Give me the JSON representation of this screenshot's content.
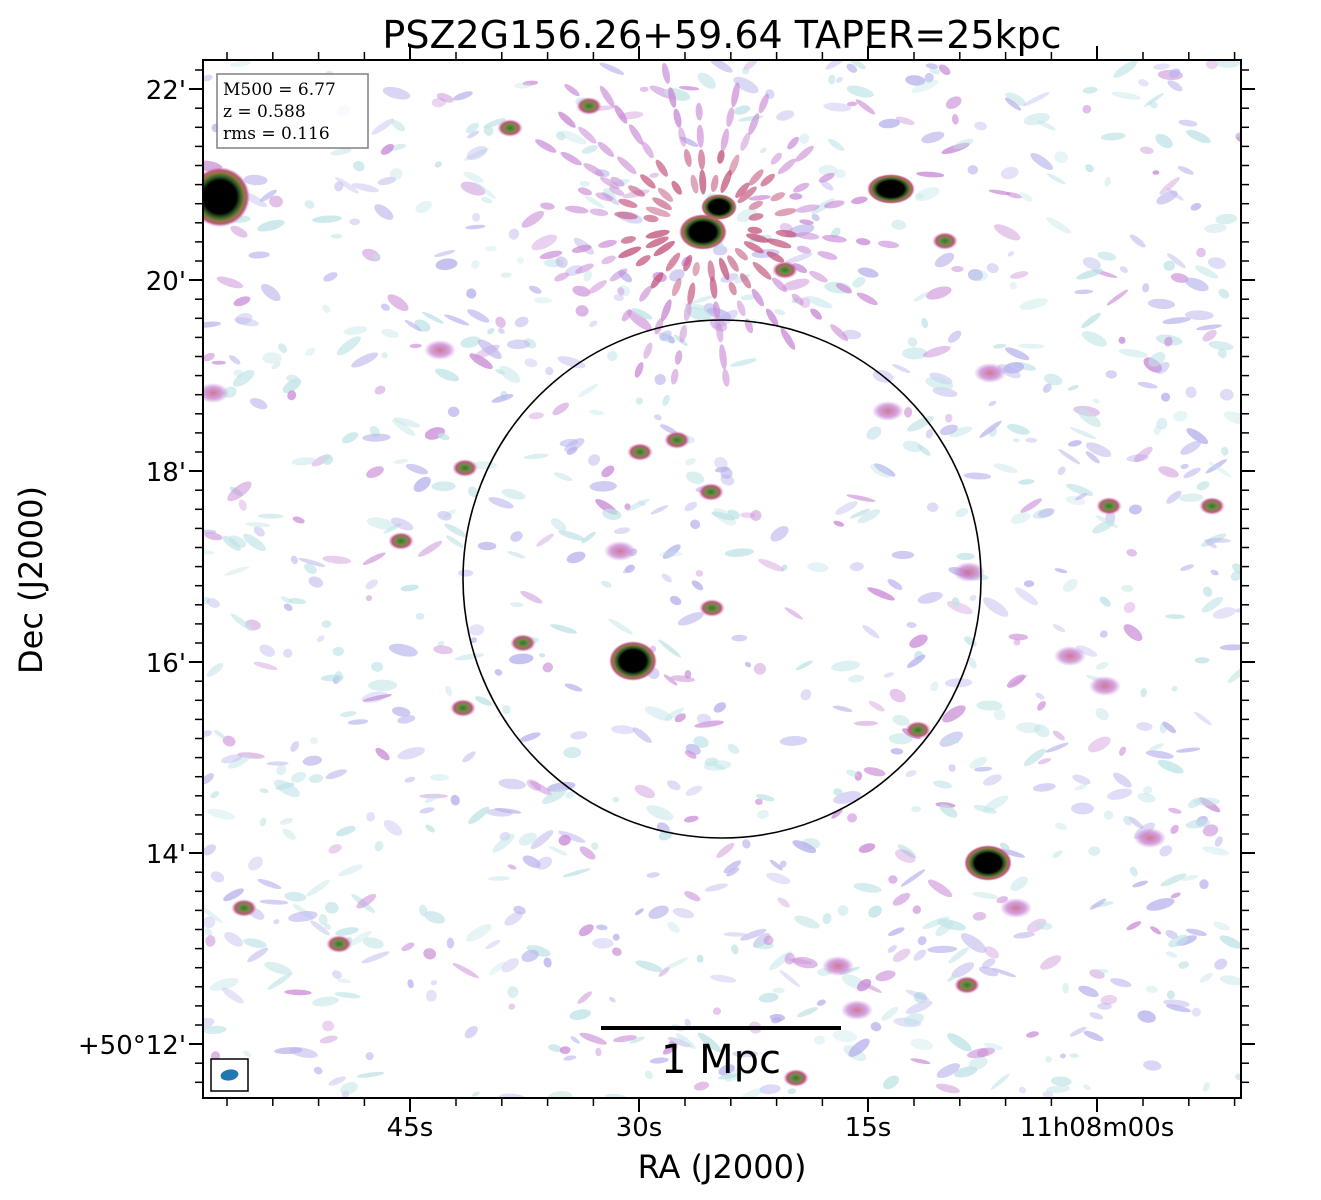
{
  "figure": {
    "title": "PSZ2G156.26+59.64 TAPER=25kpc",
    "xlabel": "RA (J2000)",
    "ylabel": "Dec (J2000)",
    "x_tick_labels": [
      "45s",
      "30s",
      "15s",
      "11h08m00s"
    ],
    "y_tick_labels": [
      "22'",
      "20'",
      "18'",
      "16'",
      "14'",
      "+50°12'"
    ]
  },
  "info_box": {
    "m500": "M500 = 6.77",
    "z": "z = 0.588",
    "rms": "rms = 0.116"
  },
  "scalebar": {
    "label": "1 Mpc"
  },
  "beam": {
    "color": "#1f77b4"
  },
  "colors": {
    "noise_low": "#bfe3e6",
    "noise_mid": "#b7b2ec",
    "noise_high": "#c98bd6",
    "source_edge": "#c2557e",
    "source_ring": "#4c8a3c",
    "source_core": "#000000"
  }
}
